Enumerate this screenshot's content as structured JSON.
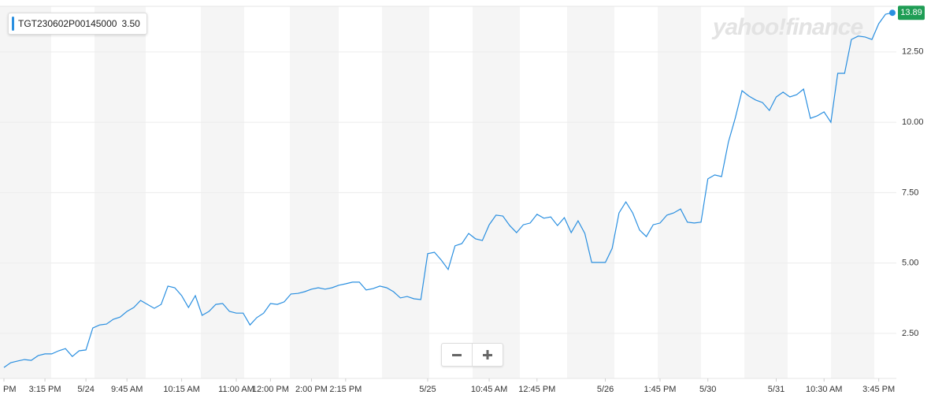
{
  "chart_data": {
    "type": "line",
    "watermark": "yahoo!finance",
    "legend_value_label": "3.50",
    "series": [
      {
        "name": "TGT230602P00145000",
        "color": "#2a8fe0",
        "values": [
          1.29,
          1.46,
          1.52,
          1.57,
          1.54,
          1.71,
          1.77,
          1.77,
          1.88,
          1.96,
          1.68,
          1.88,
          1.91,
          2.69,
          2.8,
          2.83,
          3.0,
          3.08,
          3.28,
          3.42,
          3.67,
          3.53,
          3.39,
          3.53,
          4.18,
          4.12,
          3.84,
          3.42,
          3.84,
          3.14,
          3.28,
          3.53,
          3.56,
          3.28,
          3.22,
          3.22,
          2.8,
          3.06,
          3.22,
          3.56,
          3.53,
          3.62,
          3.9,
          3.92,
          3.98,
          4.07,
          4.12,
          4.07,
          4.12,
          4.21,
          4.26,
          4.32,
          4.32,
          4.04,
          4.09,
          4.18,
          4.12,
          3.98,
          3.76,
          3.81,
          3.73,
          3.7,
          5.33,
          5.38,
          5.1,
          4.77,
          5.61,
          5.69,
          6.05,
          5.86,
          5.8,
          6.36,
          6.7,
          6.67,
          6.33,
          6.08,
          6.36,
          6.42,
          6.73,
          6.59,
          6.64,
          6.33,
          6.61,
          6.08,
          6.5,
          6.05,
          5.02,
          5.02,
          5.02,
          5.52,
          6.78,
          7.17,
          6.78,
          6.17,
          5.94,
          6.36,
          6.42,
          6.7,
          6.78,
          6.92,
          6.45,
          6.42,
          6.45,
          7.99,
          8.13,
          8.07,
          9.3,
          10.14,
          11.12,
          10.93,
          10.79,
          10.7,
          10.42,
          10.9,
          11.07,
          10.9,
          10.98,
          11.18,
          10.14,
          10.23,
          10.37,
          10.0,
          11.74,
          11.74,
          12.94,
          13.06,
          13.03,
          12.94,
          13.5,
          13.84,
          13.89
        ]
      }
    ],
    "xlim": [
      0,
      130
    ],
    "xticks": [
      {
        "value": 0,
        "label": "PM"
      },
      {
        "value": 6,
        "label": "3:15 PM"
      },
      {
        "value": 12,
        "label": "5/24"
      },
      {
        "value": 18,
        "label": "9:45 AM"
      },
      {
        "value": 26,
        "label": "10:15 AM"
      },
      {
        "value": 34,
        "label": "11:00 AM"
      },
      {
        "value": 39,
        "label": "12:00 PM"
      },
      {
        "value": 45,
        "label": "2:00 PM"
      },
      {
        "value": 50,
        "label": "2:15 PM"
      },
      {
        "value": 62,
        "label": "5/25"
      },
      {
        "value": 71,
        "label": "10:45 AM"
      },
      {
        "value": 78,
        "label": "12:45 PM"
      },
      {
        "value": 88,
        "label": "5/26"
      },
      {
        "value": 96,
        "label": "1:45 PM"
      },
      {
        "value": 103,
        "label": "5/30"
      },
      {
        "value": 113,
        "label": "5/31"
      },
      {
        "value": 120,
        "label": "10:30 AM"
      },
      {
        "value": 128,
        "label": "3:45 PM"
      }
    ],
    "ylim": [
      0.9,
      14.12
    ],
    "yticks": [
      {
        "value": 2.5,
        "label": "2.50"
      },
      {
        "value": 5,
        "label": "5.00"
      },
      {
        "value": 7.5,
        "label": "7.50"
      },
      {
        "value": 10,
        "label": "10.00"
      },
      {
        "value": 12.5,
        "label": "12.50"
      }
    ],
    "grid": true
  }
}
